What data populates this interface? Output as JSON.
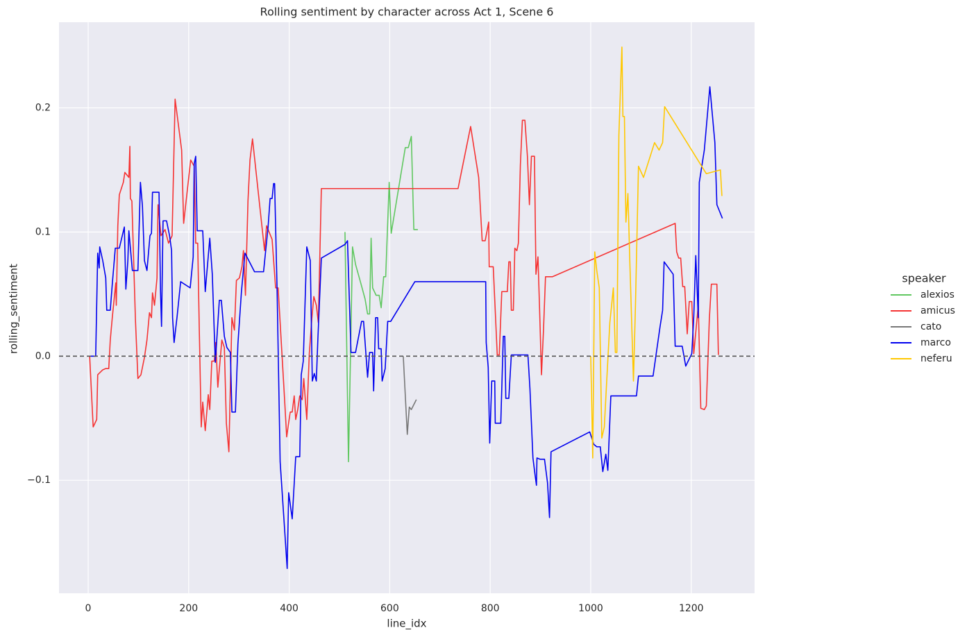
{
  "chart_data": {
    "type": "line",
    "title": "Rolling sentiment by character across Act 1, Scene 6",
    "x_label": "line_idx",
    "y_label": "rolling_sentiment",
    "xlim": [
      -58,
      1326
    ],
    "ylim": [
      -0.191,
      0.269
    ],
    "xticks": [
      0,
      200,
      400,
      600,
      800,
      1000,
      1200
    ],
    "yticks": [
      {
        "value": -0.1,
        "label": "−0.1"
      },
      {
        "value": 0,
        "label": "0.0"
      },
      {
        "value": 0.1,
        "label": "0.1"
      },
      {
        "value": 0.2,
        "label": "0.2"
      }
    ],
    "grid": true,
    "hline": 0,
    "legend": "right",
    "legend_title": "speaker",
    "series": [
      {
        "name": "alexios",
        "color": "#5fc75f",
        "x": [
          511,
          518,
          526,
          532,
          543,
          551,
          556,
          560,
          563,
          566,
          573,
          579,
          583,
          588,
          592,
          599,
          603,
          631,
          637,
          643,
          648,
          656
        ],
        "values": [
          0.1,
          -0.085,
          0.088,
          0.074,
          0.058,
          0.046,
          0.034,
          0.034,
          0.095,
          0.055,
          0.049,
          0.049,
          0.039,
          0.064,
          0.064,
          0.14,
          0.099,
          0.168,
          0.168,
          0.177,
          0.102,
          0.102
        ]
      },
      {
        "name": "amicus",
        "color": "#f53333",
        "x": [
          3,
          10,
          17,
          19,
          29,
          35,
          41,
          44,
          48,
          55,
          56,
          59,
          62,
          70,
          73,
          77,
          81,
          83,
          84,
          87,
          94,
          99,
          105,
          112,
          117,
          122,
          126,
          128,
          132,
          137,
          139,
          145,
          153,
          160,
          167,
          173,
          186,
          190,
          204,
          211,
          214,
          218,
          221,
          225,
          228,
          233,
          239,
          242,
          246,
          251,
          254,
          258,
          266,
          271,
          275,
          280,
          286,
          291,
          295,
          301,
          306,
          309,
          313,
          318,
          322,
          327,
          351,
          355,
          366,
          373,
          378,
          390,
          395,
          402,
          406,
          410,
          413,
          417,
          421,
          426,
          429,
          435,
          440,
          445,
          449,
          454,
          458,
          464,
          736,
          761,
          777,
          784,
          790,
          797,
          798,
          806,
          814,
          818,
          823,
          834,
          837,
          840,
          842,
          846,
          849,
          853,
          856,
          860,
          864,
          869,
          874,
          878,
          882,
          888,
          891,
          895,
          898,
          902,
          906,
          910,
          924,
          1168,
          1171,
          1175,
          1179,
          1183,
          1187,
          1192,
          1196,
          1201,
          1205,
          1214,
          1219,
          1226,
          1230,
          1236,
          1240,
          1251,
          1254
        ],
        "values": [
          0,
          -0.057,
          -0.051,
          -0.015,
          -0.011,
          -0.01,
          -0.01,
          0.013,
          0.031,
          0.059,
          0.041,
          0.105,
          0.13,
          0.14,
          0.148,
          0.146,
          0.144,
          0.169,
          0.127,
          0.125,
          0.03,
          -0.018,
          -0.015,
          -0.001,
          0.013,
          0.035,
          0.031,
          0.051,
          0.041,
          0.063,
          0.122,
          0.097,
          0.102,
          0.091,
          0.097,
          0.207,
          0.166,
          0.107,
          0.158,
          0.153,
          0.091,
          0.091,
          0.024,
          -0.057,
          -0.037,
          -0.06,
          -0.031,
          -0.043,
          -0.004,
          -0.004,
          0.011,
          -0.025,
          0.013,
          0.007,
          -0.054,
          -0.077,
          0.031,
          0.021,
          0.061,
          0.063,
          0.072,
          0.085,
          0.049,
          0.125,
          0.158,
          0.175,
          0.085,
          0.105,
          0.094,
          0.055,
          0.055,
          -0.029,
          -0.065,
          -0.045,
          -0.045,
          -0.032,
          -0.051,
          -0.043,
          -0.032,
          -0.035,
          -0.018,
          -0.051,
          0.002,
          0.03,
          0.048,
          0.041,
          0.027,
          0.135,
          0.135,
          0.185,
          0.144,
          0.093,
          0.093,
          0.108,
          0.072,
          0.072,
          0.001,
          0.001,
          0.052,
          0.052,
          0.076,
          0.076,
          0.037,
          0.037,
          0.087,
          0.085,
          0.091,
          0.154,
          0.19,
          0.19,
          0.161,
          0.122,
          0.161,
          0.161,
          0.066,
          0.08,
          0.041,
          -0.015,
          0.021,
          0.064,
          0.064,
          0.107,
          0.084,
          0.079,
          0.079,
          0.056,
          0.056,
          0.018,
          0.044,
          0.044,
          0.002,
          0.041,
          -0.042,
          -0.043,
          -0.04,
          0.03,
          0.058,
          0.058,
          0.001
        ]
      },
      {
        "name": "cato",
        "color": "#777777",
        "x": [
          627,
          635,
          639,
          643,
          653
        ],
        "values": [
          0,
          -0.063,
          -0.041,
          -0.043,
          -0.035
        ]
      },
      {
        "name": "marco",
        "color": "#0000ee",
        "x": [
          3,
          15,
          19,
          22,
          23,
          29,
          35,
          37,
          44,
          48,
          54,
          62,
          72,
          75,
          79,
          81,
          88,
          99,
          104,
          108,
          112,
          117,
          123,
          126,
          128,
          141,
          144,
          146,
          149,
          156,
          162,
          166,
          168,
          171,
          177,
          184,
          203,
          209,
          211,
          214,
          217,
          228,
          233,
          242,
          247,
          253,
          257,
          261,
          265,
          271,
          276,
          283,
          286,
          293,
          298,
          305,
          312,
          331,
          349,
          358,
          362,
          366,
          369,
          371,
          376,
          382,
          396,
          399,
          406,
          413,
          421,
          424,
          428,
          435,
          442,
          446,
          450,
          454,
          457,
          464,
          511,
          516,
          523,
          532,
          544,
          548,
          556,
          560,
          566,
          568,
          572,
          576,
          578,
          583,
          585,
          591,
          596,
          602,
          650,
          791,
          792,
          796,
          799,
          803,
          809,
          810,
          821,
          826,
          829,
          831,
          837,
          842,
          875,
          879,
          885,
          889,
          892,
          893,
          899,
          908,
          914,
          918,
          921,
          998,
          1006,
          1012,
          1019,
          1024,
          1030,
          1034,
          1040,
          1091,
          1095,
          1124,
          1138,
          1143,
          1146,
          1164,
          1168,
          1182,
          1189,
          1201,
          1205,
          1209,
          1214,
          1216,
          1226,
          1237,
          1247,
          1251,
          1262
        ],
        "values": [
          0,
          0,
          0.083,
          0.071,
          0.088,
          0.077,
          0.063,
          0.037,
          0.037,
          0.058,
          0.087,
          0.087,
          0.104,
          0.054,
          0.077,
          0.101,
          0.069,
          0.069,
          0.14,
          0.121,
          0.077,
          0.069,
          0.097,
          0.099,
          0.132,
          0.132,
          0.052,
          0.024,
          0.109,
          0.109,
          0.097,
          0.085,
          0.031,
          0.011,
          0.032,
          0.06,
          0.055,
          0.08,
          0.155,
          0.161,
          0.101,
          0.101,
          0.052,
          0.095,
          0.066,
          -0.005,
          0.02,
          0.045,
          0.045,
          0.016,
          0.007,
          0.003,
          -0.045,
          -0.045,
          0.01,
          0.052,
          0.083,
          0.068,
          0.068,
          0.104,
          0.127,
          0.127,
          0.139,
          0.139,
          0.052,
          -0.085,
          -0.171,
          -0.11,
          -0.131,
          -0.081,
          -0.081,
          -0.015,
          -0.004,
          0.088,
          0.077,
          -0.02,
          -0.014,
          -0.02,
          0.013,
          0.079,
          0.09,
          0.093,
          0.003,
          0.003,
          0.028,
          0.028,
          -0.017,
          0.003,
          0.003,
          -0.028,
          0.031,
          0.031,
          0.006,
          0.006,
          -0.02,
          -0.01,
          0.028,
          0.028,
          0.06,
          0.06,
          0.011,
          -0.009,
          -0.07,
          -0.02,
          -0.02,
          -0.054,
          -0.054,
          0.016,
          0.016,
          -0.034,
          -0.034,
          0.001,
          0.001,
          -0.026,
          -0.082,
          -0.095,
          -0.104,
          -0.082,
          -0.083,
          -0.083,
          -0.102,
          -0.13,
          -0.077,
          -0.061,
          -0.071,
          -0.073,
          -0.073,
          -0.093,
          -0.079,
          -0.092,
          -0.032,
          -0.032,
          -0.016,
          -0.016,
          0.024,
          0.037,
          0.076,
          0.066,
          0.008,
          0.008,
          -0.008,
          0.002,
          0.032,
          0.081,
          0.031,
          0.14,
          0.166,
          0.217,
          0.172,
          0.122,
          0.111
        ]
      },
      {
        "name": "neferu",
        "color": "#ffc800",
        "x": [
          1000,
          1004,
          1008,
          1012,
          1017,
          1022,
          1027,
          1031,
          1038,
          1045,
          1049,
          1052,
          1056,
          1062,
          1064,
          1067,
          1070,
          1074,
          1078,
          1085,
          1089,
          1095,
          1105,
          1127,
          1136,
          1143,
          1147,
          1230,
          1258,
          1261
        ],
        "values": [
          0,
          -0.082,
          0.084,
          0.069,
          0.055,
          -0.066,
          -0.057,
          -0.026,
          0.027,
          0.055,
          0.003,
          0.003,
          0.178,
          0.249,
          0.193,
          0.193,
          0.108,
          0.131,
          0.073,
          -0.02,
          0.041,
          0.153,
          0.144,
          0.172,
          0.166,
          0.172,
          0.201,
          0.147,
          0.15,
          0.129
        ]
      }
    ]
  }
}
